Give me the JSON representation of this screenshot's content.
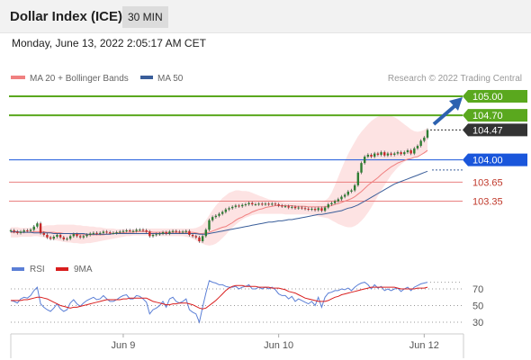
{
  "header": {
    "title": "Dollar Index (ICE)",
    "interval": "30 MIN"
  },
  "datetime": "Monday, June 13, 2022 2:05:17 AM CET",
  "watermark": "Research © 2022 Trading Central",
  "colors": {
    "bollinger": "#f08080",
    "ma50": "#3a5e9a",
    "resistance": "#5aa81e",
    "support": "#e66a6a",
    "pivot": "#1a56db",
    "price_badge": "#333333",
    "arrow": "#2d62b0",
    "rsi": "#5b7fd6",
    "rsi_ma": "#d91e1e"
  },
  "chart_data": [
    {
      "type": "candlestick",
      "legend": [
        "MA 20 + Bollinger Bands",
        "MA 50"
      ],
      "ylim": [
        102.7,
        105.1
      ],
      "x_ticks": [
        {
          "label": "Jun 9",
          "index": 34
        },
        {
          "label": "Jun 10",
          "index": 81
        },
        {
          "label": "Jun 12",
          "index": 125
        }
      ],
      "levels": [
        {
          "value": 105.0,
          "label": "105.00",
          "kind": "resistance"
        },
        {
          "value": 104.7,
          "label": "104.70",
          "kind": "resistance"
        },
        {
          "value": 104.47,
          "label": "104.47",
          "kind": "last_price"
        },
        {
          "value": 104.0,
          "label": "104.00",
          "kind": "pivot"
        },
        {
          "value": 103.65,
          "label": "103.65",
          "kind": "support"
        },
        {
          "value": 103.35,
          "label": "103.35",
          "kind": "support"
        }
      ],
      "close": [
        102.89,
        102.87,
        102.85,
        102.87,
        102.89,
        102.88,
        102.9,
        102.95,
        103.0,
        102.85,
        102.82,
        102.78,
        102.76,
        102.79,
        102.82,
        102.78,
        102.75,
        102.76,
        102.8,
        102.83,
        102.8,
        102.78,
        102.8,
        102.82,
        102.84,
        102.85,
        102.84,
        102.85,
        102.87,
        102.86,
        102.85,
        102.85,
        102.86,
        102.87,
        102.88,
        102.89,
        102.88,
        102.88,
        102.9,
        102.9,
        102.89,
        102.87,
        102.8,
        102.82,
        102.83,
        102.84,
        102.86,
        102.84,
        102.87,
        102.88,
        102.87,
        102.86,
        102.87,
        102.88,
        102.82,
        102.8,
        102.78,
        102.72,
        102.8,
        102.9,
        103.05,
        103.1,
        103.12,
        103.15,
        103.18,
        103.22,
        103.24,
        103.26,
        103.28,
        103.27,
        103.29,
        103.3,
        103.32,
        103.3,
        103.3,
        103.31,
        103.3,
        103.31,
        103.3,
        103.31,
        103.3,
        103.28,
        103.27,
        103.27,
        103.25,
        103.26,
        103.24,
        103.25,
        103.24,
        103.23,
        103.22,
        103.23,
        103.21,
        103.24,
        103.2,
        103.25,
        103.3,
        103.32,
        103.35,
        103.38,
        103.42,
        103.45,
        103.5,
        103.52,
        103.6,
        103.8,
        103.95,
        104.05,
        104.08,
        104.05,
        104.1,
        104.08,
        104.12,
        104.07,
        104.1,
        104.08,
        104.1,
        104.12,
        104.09,
        104.12,
        104.15,
        104.1,
        104.18,
        104.22,
        104.3,
        104.35,
        104.47
      ],
      "ma20": [
        102.86,
        102.86,
        102.86,
        102.86,
        102.86,
        102.86,
        102.86,
        102.87,
        102.87,
        102.87,
        102.87,
        102.86,
        102.86,
        102.86,
        102.85,
        102.85,
        102.84,
        102.84,
        102.84,
        102.83,
        102.83,
        102.82,
        102.82,
        102.82,
        102.82,
        102.82,
        102.82,
        102.82,
        102.82,
        102.83,
        102.84,
        102.84,
        102.85,
        102.85,
        102.85,
        102.86,
        102.86,
        102.86,
        102.87,
        102.87,
        102.87,
        102.87,
        102.87,
        102.86,
        102.86,
        102.86,
        102.86,
        102.86,
        102.86,
        102.86,
        102.86,
        102.86,
        102.86,
        102.86,
        102.86,
        102.86,
        102.85,
        102.84,
        102.84,
        102.85,
        102.86,
        102.88,
        102.9,
        102.92,
        102.94,
        102.95,
        102.98,
        103.01,
        103.05,
        103.08,
        103.1,
        103.13,
        103.15,
        103.18,
        103.2,
        103.22,
        103.23,
        103.25,
        103.26,
        103.27,
        103.28,
        103.28,
        103.28,
        103.28,
        103.28,
        103.28,
        103.27,
        103.27,
        103.27,
        103.27,
        103.26,
        103.26,
        103.26,
        103.26,
        103.26,
        103.26,
        103.27,
        103.28,
        103.3,
        103.31,
        103.33,
        103.35,
        103.37,
        103.39,
        103.42,
        103.46,
        103.5,
        103.55,
        103.6,
        103.64,
        103.68,
        103.72,
        103.77,
        103.81,
        103.85,
        103.89,
        103.92,
        103.95,
        103.97,
        103.99,
        104.01,
        104.02,
        104.04,
        104.05,
        104.08,
        104.11,
        104.15
      ],
      "bb_upper": [
        102.94,
        102.94,
        102.94,
        102.93,
        102.93,
        102.93,
        102.93,
        102.93,
        102.94,
        102.95,
        102.96,
        102.97,
        102.97,
        102.97,
        102.98,
        102.98,
        102.98,
        102.98,
        102.98,
        102.98,
        102.97,
        102.97,
        102.96,
        102.96,
        102.95,
        102.95,
        102.94,
        102.94,
        102.93,
        102.92,
        102.92,
        102.92,
        102.91,
        102.91,
        102.91,
        102.91,
        102.91,
        102.91,
        102.91,
        102.91,
        102.91,
        102.92,
        102.92,
        102.92,
        102.92,
        102.92,
        102.92,
        102.92,
        102.92,
        102.92,
        102.92,
        102.92,
        102.92,
        102.92,
        102.92,
        102.92,
        102.93,
        102.95,
        102.98,
        103.05,
        103.13,
        103.21,
        103.28,
        103.34,
        103.4,
        103.44,
        103.48,
        103.5,
        103.52,
        103.52,
        103.51,
        103.51,
        103.5,
        103.48,
        103.46,
        103.44,
        103.42,
        103.4,
        103.38,
        103.37,
        103.36,
        103.35,
        103.34,
        103.33,
        103.33,
        103.33,
        103.33,
        103.33,
        103.33,
        103.33,
        103.33,
        103.33,
        103.33,
        103.34,
        103.34,
        103.36,
        103.4,
        103.48,
        103.6,
        103.73,
        103.86,
        103.98,
        104.09,
        104.19,
        104.28,
        104.37,
        104.44,
        104.5,
        104.56,
        104.61,
        104.65,
        104.68,
        104.7,
        104.7,
        104.7,
        104.69,
        104.67,
        104.64,
        104.6,
        104.56,
        104.52,
        104.48,
        104.45,
        104.44,
        104.45,
        104.47,
        104.5
      ],
      "bb_lower": [
        102.78,
        102.78,
        102.78,
        102.79,
        102.79,
        102.79,
        102.79,
        102.8,
        102.8,
        102.79,
        102.78,
        102.76,
        102.75,
        102.74,
        102.73,
        102.72,
        102.71,
        102.7,
        102.7,
        102.69,
        102.69,
        102.68,
        102.68,
        102.69,
        102.69,
        102.7,
        102.71,
        102.72,
        102.73,
        102.74,
        102.75,
        102.76,
        102.77,
        102.78,
        102.79,
        102.8,
        102.8,
        102.81,
        102.81,
        102.81,
        102.81,
        102.81,
        102.81,
        102.8,
        102.8,
        102.8,
        102.8,
        102.8,
        102.8,
        102.8,
        102.8,
        102.8,
        102.8,
        102.79,
        102.78,
        102.76,
        102.73,
        102.7,
        102.68,
        102.66,
        102.65,
        102.66,
        102.68,
        102.72,
        102.77,
        102.82,
        102.88,
        102.93,
        102.98,
        103.02,
        103.06,
        103.09,
        103.11,
        103.13,
        103.14,
        103.15,
        103.15,
        103.15,
        103.15,
        103.15,
        103.15,
        103.15,
        103.15,
        103.14,
        103.14,
        103.14,
        103.14,
        103.14,
        103.14,
        103.14,
        103.14,
        103.13,
        103.12,
        103.11,
        103.1,
        103.09,
        103.08,
        103.05,
        103.02,
        102.99,
        102.97,
        102.95,
        102.94,
        102.94,
        102.96,
        102.99,
        103.04,
        103.1,
        103.17,
        103.25,
        103.34,
        103.43,
        103.52,
        103.6,
        103.68,
        103.76,
        103.82,
        103.88,
        103.93,
        103.97,
        104.0,
        104.02,
        104.04,
        104.06,
        104.08,
        104.1,
        104.12
      ],
      "ma50": [
        102.87,
        102.87,
        102.87,
        102.86,
        102.86,
        102.86,
        102.86,
        102.85,
        102.85,
        102.85,
        102.85,
        102.85,
        102.85,
        102.84,
        102.84,
        102.84,
        102.84,
        102.84,
        102.84,
        102.84,
        102.84,
        102.84,
        102.84,
        102.83,
        102.83,
        102.83,
        102.83,
        102.83,
        102.83,
        102.83,
        102.83,
        102.84,
        102.84,
        102.84,
        102.84,
        102.84,
        102.84,
        102.84,
        102.84,
        102.84,
        102.84,
        102.84,
        102.84,
        102.84,
        102.84,
        102.84,
        102.84,
        102.84,
        102.84,
        102.84,
        102.84,
        102.84,
        102.84,
        102.84,
        102.84,
        102.84,
        102.84,
        102.83,
        102.83,
        102.83,
        102.84,
        102.85,
        102.86,
        102.87,
        102.88,
        102.89,
        102.9,
        102.91,
        102.92,
        102.93,
        102.94,
        102.95,
        102.96,
        102.97,
        102.98,
        102.99,
        103.0,
        103.01,
        103.02,
        103.02,
        103.03,
        103.04,
        103.04,
        103.05,
        103.06,
        103.06,
        103.07,
        103.08,
        103.09,
        103.1,
        103.11,
        103.12,
        103.13,
        103.14,
        103.14,
        103.15,
        103.16,
        103.17,
        103.18,
        103.19,
        103.2,
        103.22,
        103.24,
        103.25,
        103.27,
        103.29,
        103.32,
        103.35,
        103.38,
        103.41,
        103.44,
        103.47,
        103.5,
        103.53,
        103.56,
        103.59,
        103.62,
        103.64,
        103.66,
        103.68,
        103.7,
        103.72,
        103.74,
        103.76,
        103.78,
        103.8,
        103.82
      ],
      "ma50_projection": 103.84
    },
    {
      "type": "line",
      "legend": [
        "RSI",
        "9MA"
      ],
      "ylim": [
        20,
        80
      ],
      "y_ticks": [
        70,
        50,
        30
      ],
      "series": [
        {
          "name": "RSI",
          "values": [
            56,
            55,
            53,
            58,
            60,
            59,
            62,
            68,
            72,
            52,
            48,
            45,
            43,
            47,
            52,
            46,
            43,
            45,
            53,
            57,
            52,
            49,
            53,
            56,
            58,
            60,
            57,
            58,
            62,
            58,
            55,
            55,
            57,
            60,
            62,
            63,
            58,
            58,
            62,
            61,
            58,
            54,
            40,
            45,
            47,
            50,
            55,
            48,
            58,
            60,
            55,
            53,
            55,
            58,
            45,
            42,
            40,
            30,
            48,
            65,
            80,
            78,
            77,
            75,
            75,
            73,
            72,
            72,
            73,
            70,
            72,
            73,
            75,
            70,
            70,
            72,
            70,
            72,
            70,
            72,
            69,
            64,
            62,
            62,
            58,
            61,
            55,
            58,
            56,
            54,
            52,
            55,
            50,
            60,
            48,
            60,
            65,
            66,
            68,
            68,
            70,
            69,
            71,
            68,
            72,
            75,
            77,
            78,
            75,
            70,
            75,
            71,
            73,
            68,
            70,
            68,
            70,
            71,
            67,
            70,
            72,
            68,
            72,
            74,
            76,
            77,
            78
          ]
        },
        {
          "name": "9MA",
          "values": [
            56,
            56,
            56,
            56,
            57,
            57,
            58,
            59,
            60,
            60,
            59,
            58,
            56,
            54,
            52,
            50,
            49,
            48,
            47,
            48,
            48,
            49,
            50,
            51,
            52,
            53,
            54,
            55,
            56,
            57,
            57,
            57,
            57,
            57,
            58,
            58,
            59,
            59,
            59,
            59,
            59,
            59,
            57,
            55,
            54,
            53,
            52,
            51,
            51,
            52,
            52,
            53,
            53,
            53,
            52,
            51,
            49,
            47,
            46,
            47,
            50,
            53,
            56,
            60,
            64,
            68,
            71,
            73,
            74,
            74,
            74,
            73,
            73,
            73,
            73,
            72,
            72,
            72,
            72,
            71,
            71,
            71,
            70,
            69,
            67,
            66,
            65,
            63,
            61,
            59,
            58,
            57,
            56,
            55,
            55,
            55,
            56,
            58,
            60,
            61,
            63,
            64,
            65,
            66,
            67,
            68,
            69,
            70,
            71,
            72,
            72,
            72,
            72,
            72,
            72,
            72,
            72,
            71,
            70,
            70,
            70,
            70,
            70,
            71,
            71,
            71,
            72
          ]
        }
      ]
    }
  ]
}
